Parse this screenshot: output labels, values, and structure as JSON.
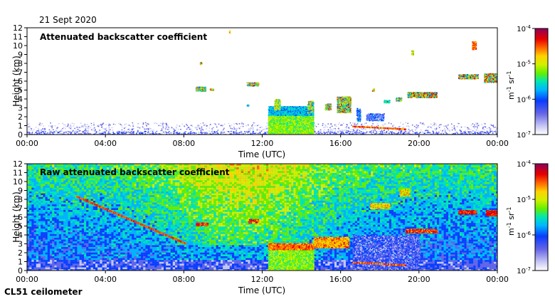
{
  "date_label": "21 Sept 2020",
  "instrument_label": "CL51 ceilometer",
  "colors": {
    "background": "#ffffff",
    "axis": "#000000",
    "colormap": [
      "#ffffff",
      "#c7c7f5",
      "#6464e6",
      "#0a3cff",
      "#00b4ff",
      "#00e6b4",
      "#64f000",
      "#d2f000",
      "#ffd200",
      "#ff6400",
      "#e60000",
      "#b40032",
      "#8c0064"
    ]
  },
  "chart_data": [
    {
      "type": "heatmap",
      "title": "Attenuated backscatter coefficient",
      "xlabel": "Time (UTC)",
      "ylabel": "Height (km)",
      "x_ticks": [
        "00:00",
        "04:00",
        "08:00",
        "12:00",
        "16:00",
        "20:00",
        "00:00"
      ],
      "y_ticks": [
        "0",
        "1",
        "2",
        "3",
        "4",
        "5",
        "6",
        "7",
        "8",
        "9",
        "10",
        "11",
        "12"
      ],
      "xlim_hours": [
        0,
        24
      ],
      "ylim_km": [
        0,
        12
      ],
      "colorbar": {
        "label": "m-1 sr-1",
        "label_base": "m",
        "label_exp1": "-1",
        "label_mid": " sr",
        "label_exp2": "-1",
        "scale": "log",
        "range": [
          1e-07,
          0.0001
        ],
        "ticks": [
          {
            "base": "10",
            "exp": "-4"
          },
          {
            "base": "10",
            "exp": "-5"
          },
          {
            "base": "10",
            "exp": "-6"
          },
          {
            "base": "10",
            "exp": "-7"
          }
        ]
      }
    },
    {
      "type": "heatmap",
      "title": "Raw attenuated backscatter coefficient",
      "xlabel": "Time (UTC)",
      "ylabel": "Height (km)",
      "x_ticks": [
        "00:00",
        "04:00",
        "08:00",
        "12:00",
        "16:00",
        "20:00",
        "00:00"
      ],
      "y_ticks": [
        "0",
        "1",
        "2",
        "3",
        "4",
        "5",
        "6",
        "7",
        "8",
        "9",
        "10",
        "11",
        "12"
      ],
      "xlim_hours": [
        0,
        24
      ],
      "ylim_km": [
        0,
        12
      ],
      "colorbar": {
        "label": "m-1 sr-1",
        "label_base": "m",
        "label_exp1": "-1",
        "label_mid": " sr",
        "label_exp2": "-1",
        "scale": "log",
        "range": [
          1e-07,
          0.0001
        ],
        "ticks": [
          {
            "base": "10",
            "exp": "-4"
          },
          {
            "base": "10",
            "exp": "-5"
          },
          {
            "base": "10",
            "exp": "-6"
          },
          {
            "base": "10",
            "exp": "-7"
          }
        ]
      }
    }
  ]
}
